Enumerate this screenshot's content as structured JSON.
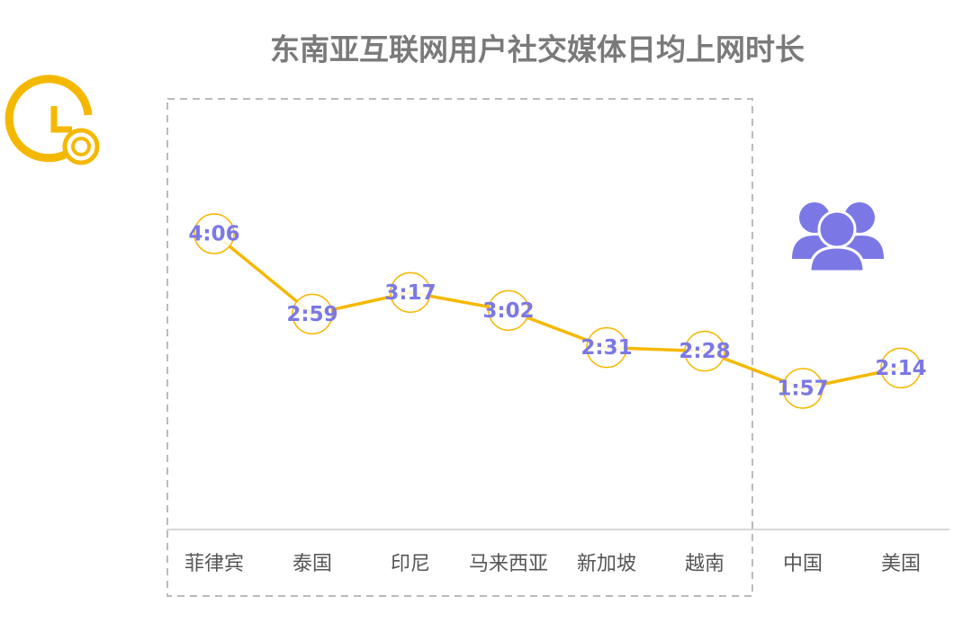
{
  "chart_data": {
    "type": "line",
    "title": "东南亚互联网用户社交媒体日均上网时长",
    "categories": [
      "菲律宾",
      "泰国",
      "印尼",
      "马来西亚",
      "新加坡",
      "越南",
      "中国",
      "美国"
    ],
    "series": [
      {
        "color": "#f5b800",
        "values": [
          246,
          179,
          197,
          182,
          151,
          148,
          117,
          134
        ],
        "value_labels": [
          "4:06",
          "2:59",
          "3:17",
          "3:02",
          "2:31",
          "2:28",
          "1:57",
          "2:14"
        ]
      }
    ]
  }
}
